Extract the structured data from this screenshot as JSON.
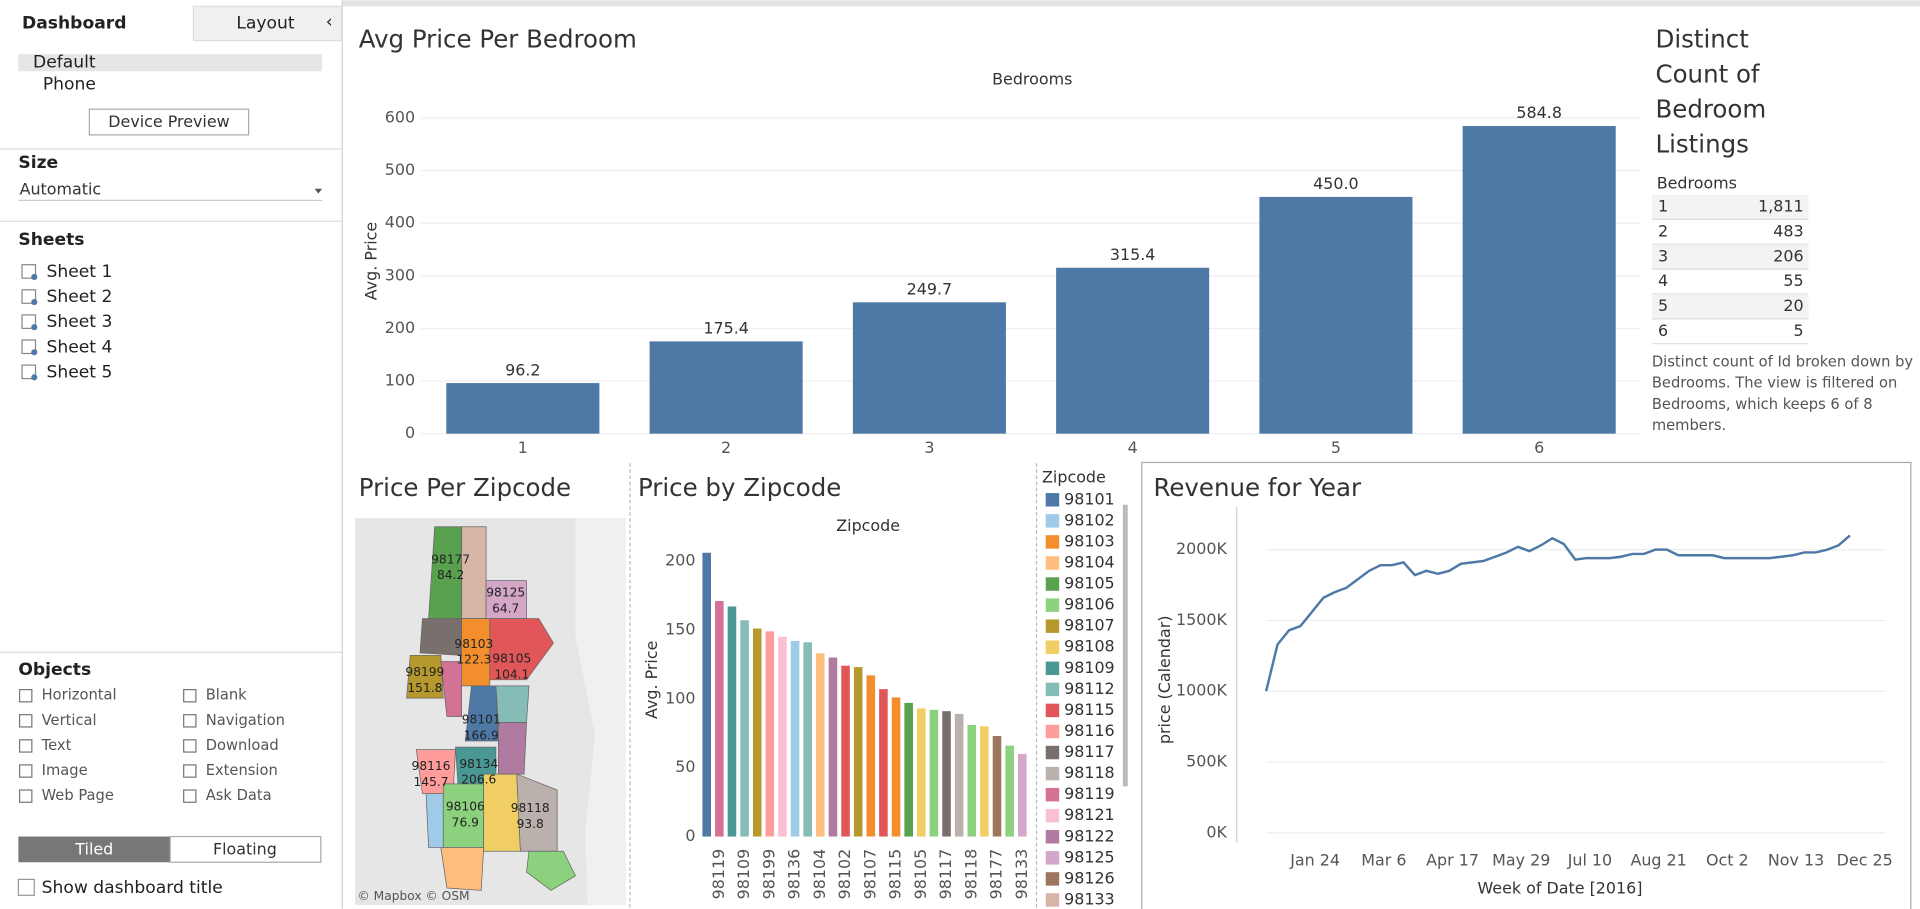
{
  "sidebar": {
    "tabs": [
      "Dashboard",
      "Layout"
    ],
    "devices": [
      "Default",
      "Phone"
    ],
    "device_preview": "Device Preview",
    "size_title": "Size",
    "size_value": "Automatic",
    "sheets_title": "Sheets",
    "sheets": [
      "Sheet 1",
      "Sheet 2",
      "Sheet 3",
      "Sheet 4",
      "Sheet 5"
    ],
    "objects_title": "Objects",
    "objects": [
      "Horizontal",
      "Blank",
      "Vertical",
      "Navigation",
      "Text",
      "Download",
      "Image",
      "Extension",
      "Web Page",
      "Ask Data"
    ],
    "layout_modes": [
      "Tiled",
      "Floating"
    ],
    "show_title": "Show dashboard title"
  },
  "chart_data": [
    {
      "type": "bar",
      "title": "Avg Price Per Bedroom",
      "x_label": "Bedrooms",
      "y_label": "Avg. Price",
      "categories": [
        "1",
        "2",
        "3",
        "4",
        "5",
        "6"
      ],
      "values": [
        96.2,
        175.4,
        249.7,
        315.4,
        450.0,
        584.8
      ],
      "value_labels": [
        "96.2",
        "175.4",
        "249.7",
        "315.4",
        "450.0",
        "584.8"
      ],
      "color": "#4e79a7",
      "ylim": [
        0,
        640
      ],
      "yticks": [
        0,
        100,
        200,
        300,
        400,
        500,
        600
      ],
      "grid": true
    },
    {
      "type": "bar",
      "title": "Price by Zipcode",
      "x_label": "Zipcode",
      "y_label": "Avg. Price",
      "categories": [
        null,
        "98119",
        null,
        "98109",
        null,
        "98199",
        null,
        "98136",
        null,
        "98104",
        null,
        "98102",
        null,
        "98107",
        null,
        "98115",
        null,
        "98105",
        null,
        "98117",
        null,
        "98118",
        null,
        "98177",
        null,
        "98133"
      ],
      "values": [
        206,
        171,
        167,
        157,
        151,
        149,
        145,
        142,
        141,
        133,
        130,
        124,
        123,
        117,
        107,
        101,
        97,
        93,
        92,
        91,
        89,
        81,
        80,
        73,
        66,
        60
      ],
      "colors": [
        "#4e79a7",
        "#d37295",
        "#499894",
        "#86bcb6",
        "#b6992d",
        "#ff9d9a",
        "#fabfd2",
        "#a0cbe8",
        "#86bcb6",
        "#ffbe7d",
        "#b07aa1",
        "#e15759",
        "#b6992d",
        "#f28e2b",
        "#e15759",
        "#f28e2b",
        "#59a14f",
        "#f1ce63",
        "#8cd17d",
        "#79706e",
        "#bab0ac",
        "#8cd17d",
        "#f1ce63",
        "#9d7660",
        "#8cd17d",
        "#d4a6c8"
      ],
      "ylim": [
        0,
        220
      ],
      "yticks": [
        0,
        50,
        100,
        150,
        200
      ],
      "grid": false,
      "legend": {
        "title": "Zipcode",
        "items": [
          {
            "label": "98101",
            "color": "#4e79a7"
          },
          {
            "label": "98102",
            "color": "#a0cbe8"
          },
          {
            "label": "98103",
            "color": "#f28e2b"
          },
          {
            "label": "98104",
            "color": "#ffbe7d"
          },
          {
            "label": "98105",
            "color": "#59a14f"
          },
          {
            "label": "98106",
            "color": "#8cd17d"
          },
          {
            "label": "98107",
            "color": "#b6992d"
          },
          {
            "label": "98108",
            "color": "#f1ce63"
          },
          {
            "label": "98109",
            "color": "#499894"
          },
          {
            "label": "98112",
            "color": "#86bcb6"
          },
          {
            "label": "98115",
            "color": "#e15759"
          },
          {
            "label": "98116",
            "color": "#ff9d9a"
          },
          {
            "label": "98117",
            "color": "#79706e"
          },
          {
            "label": "98118",
            "color": "#bab0ac"
          },
          {
            "label": "98119",
            "color": "#d37295"
          },
          {
            "label": "98121",
            "color": "#fabfd2"
          },
          {
            "label": "98122",
            "color": "#b07aa1"
          },
          {
            "label": "98125",
            "color": "#d4a6c8"
          },
          {
            "label": "98126",
            "color": "#9d7660"
          },
          {
            "label": "98133",
            "color": "#d7b5a6"
          }
        ]
      }
    },
    {
      "type": "line",
      "title": "Revenue for Year",
      "x_label": "Week of Date [2016]",
      "y_label": "price (Calendar)",
      "categories": [
        null,
        null,
        null,
        "Jan 24",
        null,
        null,
        null,
        null,
        null,
        "Mar 6",
        null,
        null,
        null,
        null,
        null,
        "Apr 17",
        null,
        null,
        null,
        null,
        null,
        "May 29",
        null,
        null,
        null,
        null,
        null,
        "Jul 10",
        null,
        null,
        null,
        null,
        null,
        "Aug 21",
        null,
        null,
        null,
        null,
        null,
        "Oct 2",
        null,
        null,
        null,
        null,
        null,
        "Nov 13",
        null,
        null,
        null,
        null,
        null,
        "Dec 25"
      ],
      "values": [
        1000000,
        1330000,
        1430000,
        1460000,
        1560000,
        1660000,
        1700000,
        1730000,
        1790000,
        1850000,
        1890000,
        1890000,
        1910000,
        1820000,
        1850000,
        1830000,
        1850000,
        1900000,
        1910000,
        1920000,
        1950000,
        1980000,
        2020000,
        1990000,
        2030000,
        2080000,
        2040000,
        1930000,
        1940000,
        1940000,
        1940000,
        1950000,
        1970000,
        1970000,
        2000000,
        2000000,
        1960000,
        1960000,
        1960000,
        1960000,
        1940000,
        1940000,
        1940000,
        1940000,
        1940000,
        1950000,
        1960000,
        1980000,
        1980000,
        2000000,
        2030000,
        2100000
      ],
      "color": "#4e79a7",
      "ylim": [
        0,
        2300000
      ],
      "yticks": [
        {
          "value": 0,
          "label": "0K"
        },
        {
          "value": 500000,
          "label": "500K"
        },
        {
          "value": 1000000,
          "label": "1000K"
        },
        {
          "value": 1500000,
          "label": "1500K"
        },
        {
          "value": 2000000,
          "label": "2000K"
        }
      ],
      "grid": true
    }
  ],
  "map": {
    "title": "Price Per Zipcode",
    "attribution": "© Mapbox © OSM",
    "regions": [
      {
        "zipcode": "98177",
        "price": "84.2"
      },
      {
        "zipcode": "98125",
        "price": "64.7"
      },
      {
        "zipcode": "98103",
        "price": "122.3"
      },
      {
        "zipcode": "98105",
        "price": "104.1"
      },
      {
        "zipcode": "98199",
        "price": "151.8"
      },
      {
        "zipcode": "98101",
        "price": "166.9"
      },
      {
        "zipcode": "98116",
        "price": "145.7"
      },
      {
        "zipcode": "98134",
        "price": "206.6"
      },
      {
        "zipcode": "98106",
        "price": "76.9"
      },
      {
        "zipcode": "98118",
        "price": "93.8"
      }
    ]
  },
  "bedroom_table": {
    "title": [
      "Distinct",
      "Count of",
      "Bedroom",
      "Listings"
    ],
    "header": "Bedrooms",
    "rows": [
      [
        "1",
        "1,811"
      ],
      [
        "2",
        "483"
      ],
      [
        "3",
        "206"
      ],
      [
        "4",
        "55"
      ],
      [
        "5",
        "20"
      ],
      [
        "6",
        "5"
      ]
    ],
    "description": [
      "Distinct count of Id broken down by",
      "Bedrooms. The view is filtered on",
      "Bedrooms, which keeps 6 of 8",
      "members."
    ]
  }
}
